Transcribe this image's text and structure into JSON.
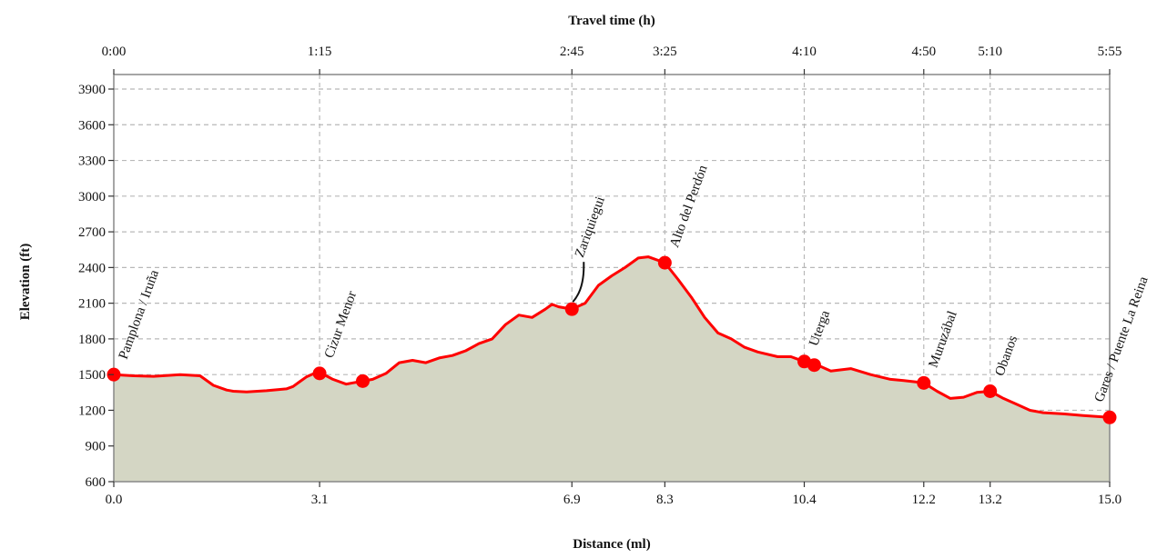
{
  "chart_data": {
    "type": "area",
    "xlabel": "Distance (ml)",
    "ylabel": "Elevation (ft)",
    "top_axis_label": "Travel time (h)",
    "xlim": [
      0,
      15
    ],
    "ylim": [
      600,
      4000
    ],
    "grid": true,
    "yticks": [
      600,
      900,
      1200,
      1500,
      1800,
      2100,
      2400,
      2700,
      3000,
      3300,
      3600,
      3900
    ],
    "ytick_labels": [
      "600",
      "900",
      "1200",
      "1500",
      "1800",
      "2100",
      "2400",
      "2700",
      "3000",
      "3300",
      "3600",
      "3900"
    ],
    "xticks": [
      0.0,
      3.1,
      6.9,
      8.3,
      10.4,
      12.2,
      13.2,
      15.0
    ],
    "xtick_labels": [
      "0.0",
      "3.1",
      "6.9",
      "8.3",
      "10.4",
      "12.2",
      "13.2",
      "15.0"
    ],
    "top_ticks": [
      0.0,
      3.1,
      6.9,
      8.3,
      10.4,
      12.2,
      13.2,
      15.0
    ],
    "top_tick_labels": [
      "0:00",
      "1:15",
      "2:45",
      "3:25",
      "4:10",
      "4:50",
      "5:10",
      "5:55"
    ],
    "colors": {
      "line": "#ff0000",
      "fill": "#d4d6c4",
      "grid": "#b8b8b8",
      "markers": "#ff0000"
    },
    "profile": {
      "x": [
        0,
        0.3,
        0.6,
        1.0,
        1.3,
        1.5,
        1.7,
        1.8,
        2.0,
        2.3,
        2.6,
        2.7,
        2.8,
        2.9,
        3.0,
        3.1,
        3.2,
        3.3,
        3.5,
        3.6,
        3.75,
        3.9,
        4.1,
        4.3,
        4.5,
        4.7,
        4.9,
        5.1,
        5.3,
        5.5,
        5.7,
        5.9,
        6.1,
        6.3,
        6.5,
        6.6,
        6.7,
        6.8,
        6.9,
        7.1,
        7.3,
        7.5,
        7.7,
        7.9,
        8.05,
        8.15,
        8.3,
        8.5,
        8.7,
        8.9,
        9.1,
        9.3,
        9.5,
        9.7,
        10.0,
        10.2,
        10.3,
        10.4,
        10.5,
        10.6,
        10.8,
        11.1,
        11.4,
        11.7,
        11.9,
        12.2,
        12.4,
        12.6,
        12.8,
        13.0,
        13.2,
        13.4,
        13.6,
        13.8,
        14.0,
        14.3,
        14.6,
        15.0
      ],
      "y": [
        1500,
        1490,
        1485,
        1500,
        1490,
        1410,
        1370,
        1360,
        1355,
        1365,
        1380,
        1400,
        1440,
        1480,
        1505,
        1510,
        1490,
        1460,
        1420,
        1430,
        1445,
        1460,
        1510,
        1600,
        1620,
        1600,
        1640,
        1660,
        1700,
        1760,
        1800,
        1920,
        2000,
        1980,
        2050,
        2090,
        2070,
        2060,
        2050,
        2100,
        2250,
        2330,
        2400,
        2480,
        2490,
        2470,
        2440,
        2300,
        2150,
        1980,
        1850,
        1800,
        1730,
        1690,
        1650,
        1650,
        1630,
        1610,
        1600,
        1580,
        1530,
        1550,
        1500,
        1460,
        1450,
        1430,
        1360,
        1300,
        1310,
        1350,
        1360,
        1300,
        1250,
        1200,
        1180,
        1170,
        1155,
        1140
      ]
    },
    "waypoints": [
      {
        "x": 0.0,
        "y": 1500,
        "label": "Pamplona / Iruña"
      },
      {
        "x": 3.1,
        "y": 1510,
        "label": "Cizur Menor"
      },
      {
        "x": 3.75,
        "y": 1445,
        "label": ""
      },
      {
        "x": 6.9,
        "y": 2050,
        "label": "Zariquiegui"
      },
      {
        "x": 8.3,
        "y": 2440,
        "label": "Alto del Perdón"
      },
      {
        "x": 10.4,
        "y": 1610,
        "label": "Uterga"
      },
      {
        "x": 10.55,
        "y": 1580,
        "label": ""
      },
      {
        "x": 12.2,
        "y": 1430,
        "label": "Muruzábal"
      },
      {
        "x": 13.2,
        "y": 1360,
        "label": "Obanos"
      },
      {
        "x": 15.0,
        "y": 1140,
        "label": "Gares / Puente La Reina"
      }
    ]
  }
}
